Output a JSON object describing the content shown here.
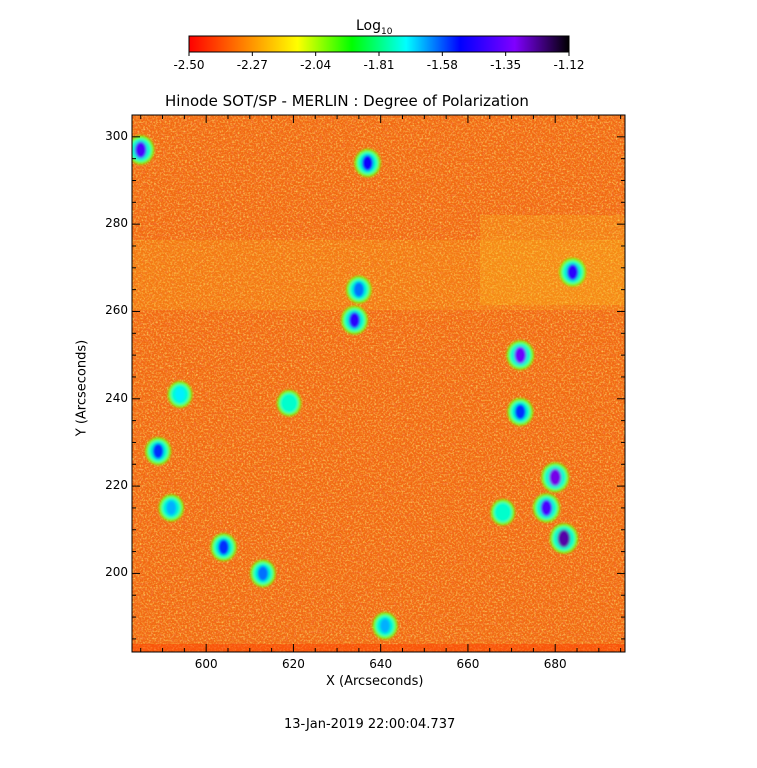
{
  "colorbar": {
    "title_main": "Log",
    "title_sub": "10",
    "min": -2.5,
    "max": -1.12,
    "ticks": [
      "-2.50",
      "-2.27",
      "-2.04",
      "-1.81",
      "-1.58",
      "-1.35",
      "-1.12"
    ],
    "colormap": [
      "#ff0000",
      "#ff8000",
      "#ffff00",
      "#00ff00",
      "#00ffff",
      "#0000ff",
      "#8000ff",
      "#000000"
    ]
  },
  "chart_data": {
    "type": "heatmap",
    "title": "Hinode SOT/SP - MERLIN : Degree of Polarization",
    "xlabel": "X (Arcseconds)",
    "ylabel": "Y (Arcseconds)",
    "xlim": [
      583,
      696
    ],
    "ylim": [
      182,
      305
    ],
    "xticks": [
      600,
      620,
      640,
      660,
      680
    ],
    "yticks": [
      200,
      220,
      240,
      260,
      280,
      300
    ],
    "value_unit": "log10 degree of polarization",
    "background_level": -2.35,
    "grid": false,
    "features": [
      {
        "x": 585,
        "y": 297,
        "value": -1.4
      },
      {
        "x": 594,
        "y": 241,
        "value": -1.7
      },
      {
        "x": 589,
        "y": 228,
        "value": -1.55
      },
      {
        "x": 592,
        "y": 215,
        "value": -1.65
      },
      {
        "x": 604,
        "y": 206,
        "value": -1.55
      },
      {
        "x": 613,
        "y": 200,
        "value": -1.6
      },
      {
        "x": 619,
        "y": 239,
        "value": -1.75
      },
      {
        "x": 635,
        "y": 265,
        "value": -1.6
      },
      {
        "x": 634,
        "y": 258,
        "value": -1.45
      },
      {
        "x": 637,
        "y": 294,
        "value": -1.5
      },
      {
        "x": 641,
        "y": 188,
        "value": -1.65
      },
      {
        "x": 672,
        "y": 250,
        "value": -1.35
      },
      {
        "x": 672,
        "y": 237,
        "value": -1.55
      },
      {
        "x": 680,
        "y": 222,
        "value": -1.3
      },
      {
        "x": 678,
        "y": 215,
        "value": -1.4
      },
      {
        "x": 682,
        "y": 208,
        "value": -1.25
      },
      {
        "x": 684,
        "y": 269,
        "value": -1.45
      },
      {
        "x": 668,
        "y": 214,
        "value": -1.75
      }
    ]
  },
  "footer": {
    "timestamp": "13-Jan-2019 22:00:04.737"
  }
}
